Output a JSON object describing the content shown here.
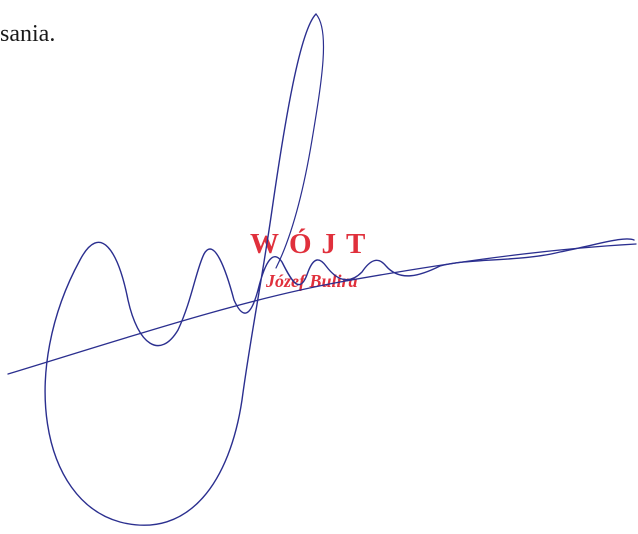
{
  "document": {
    "body_text": "sania."
  },
  "stamp": {
    "title": "WÓJT",
    "name": "Józef Bulira",
    "color": "#e0303c"
  },
  "signature": {
    "ink_color": "#2b2f8f"
  }
}
